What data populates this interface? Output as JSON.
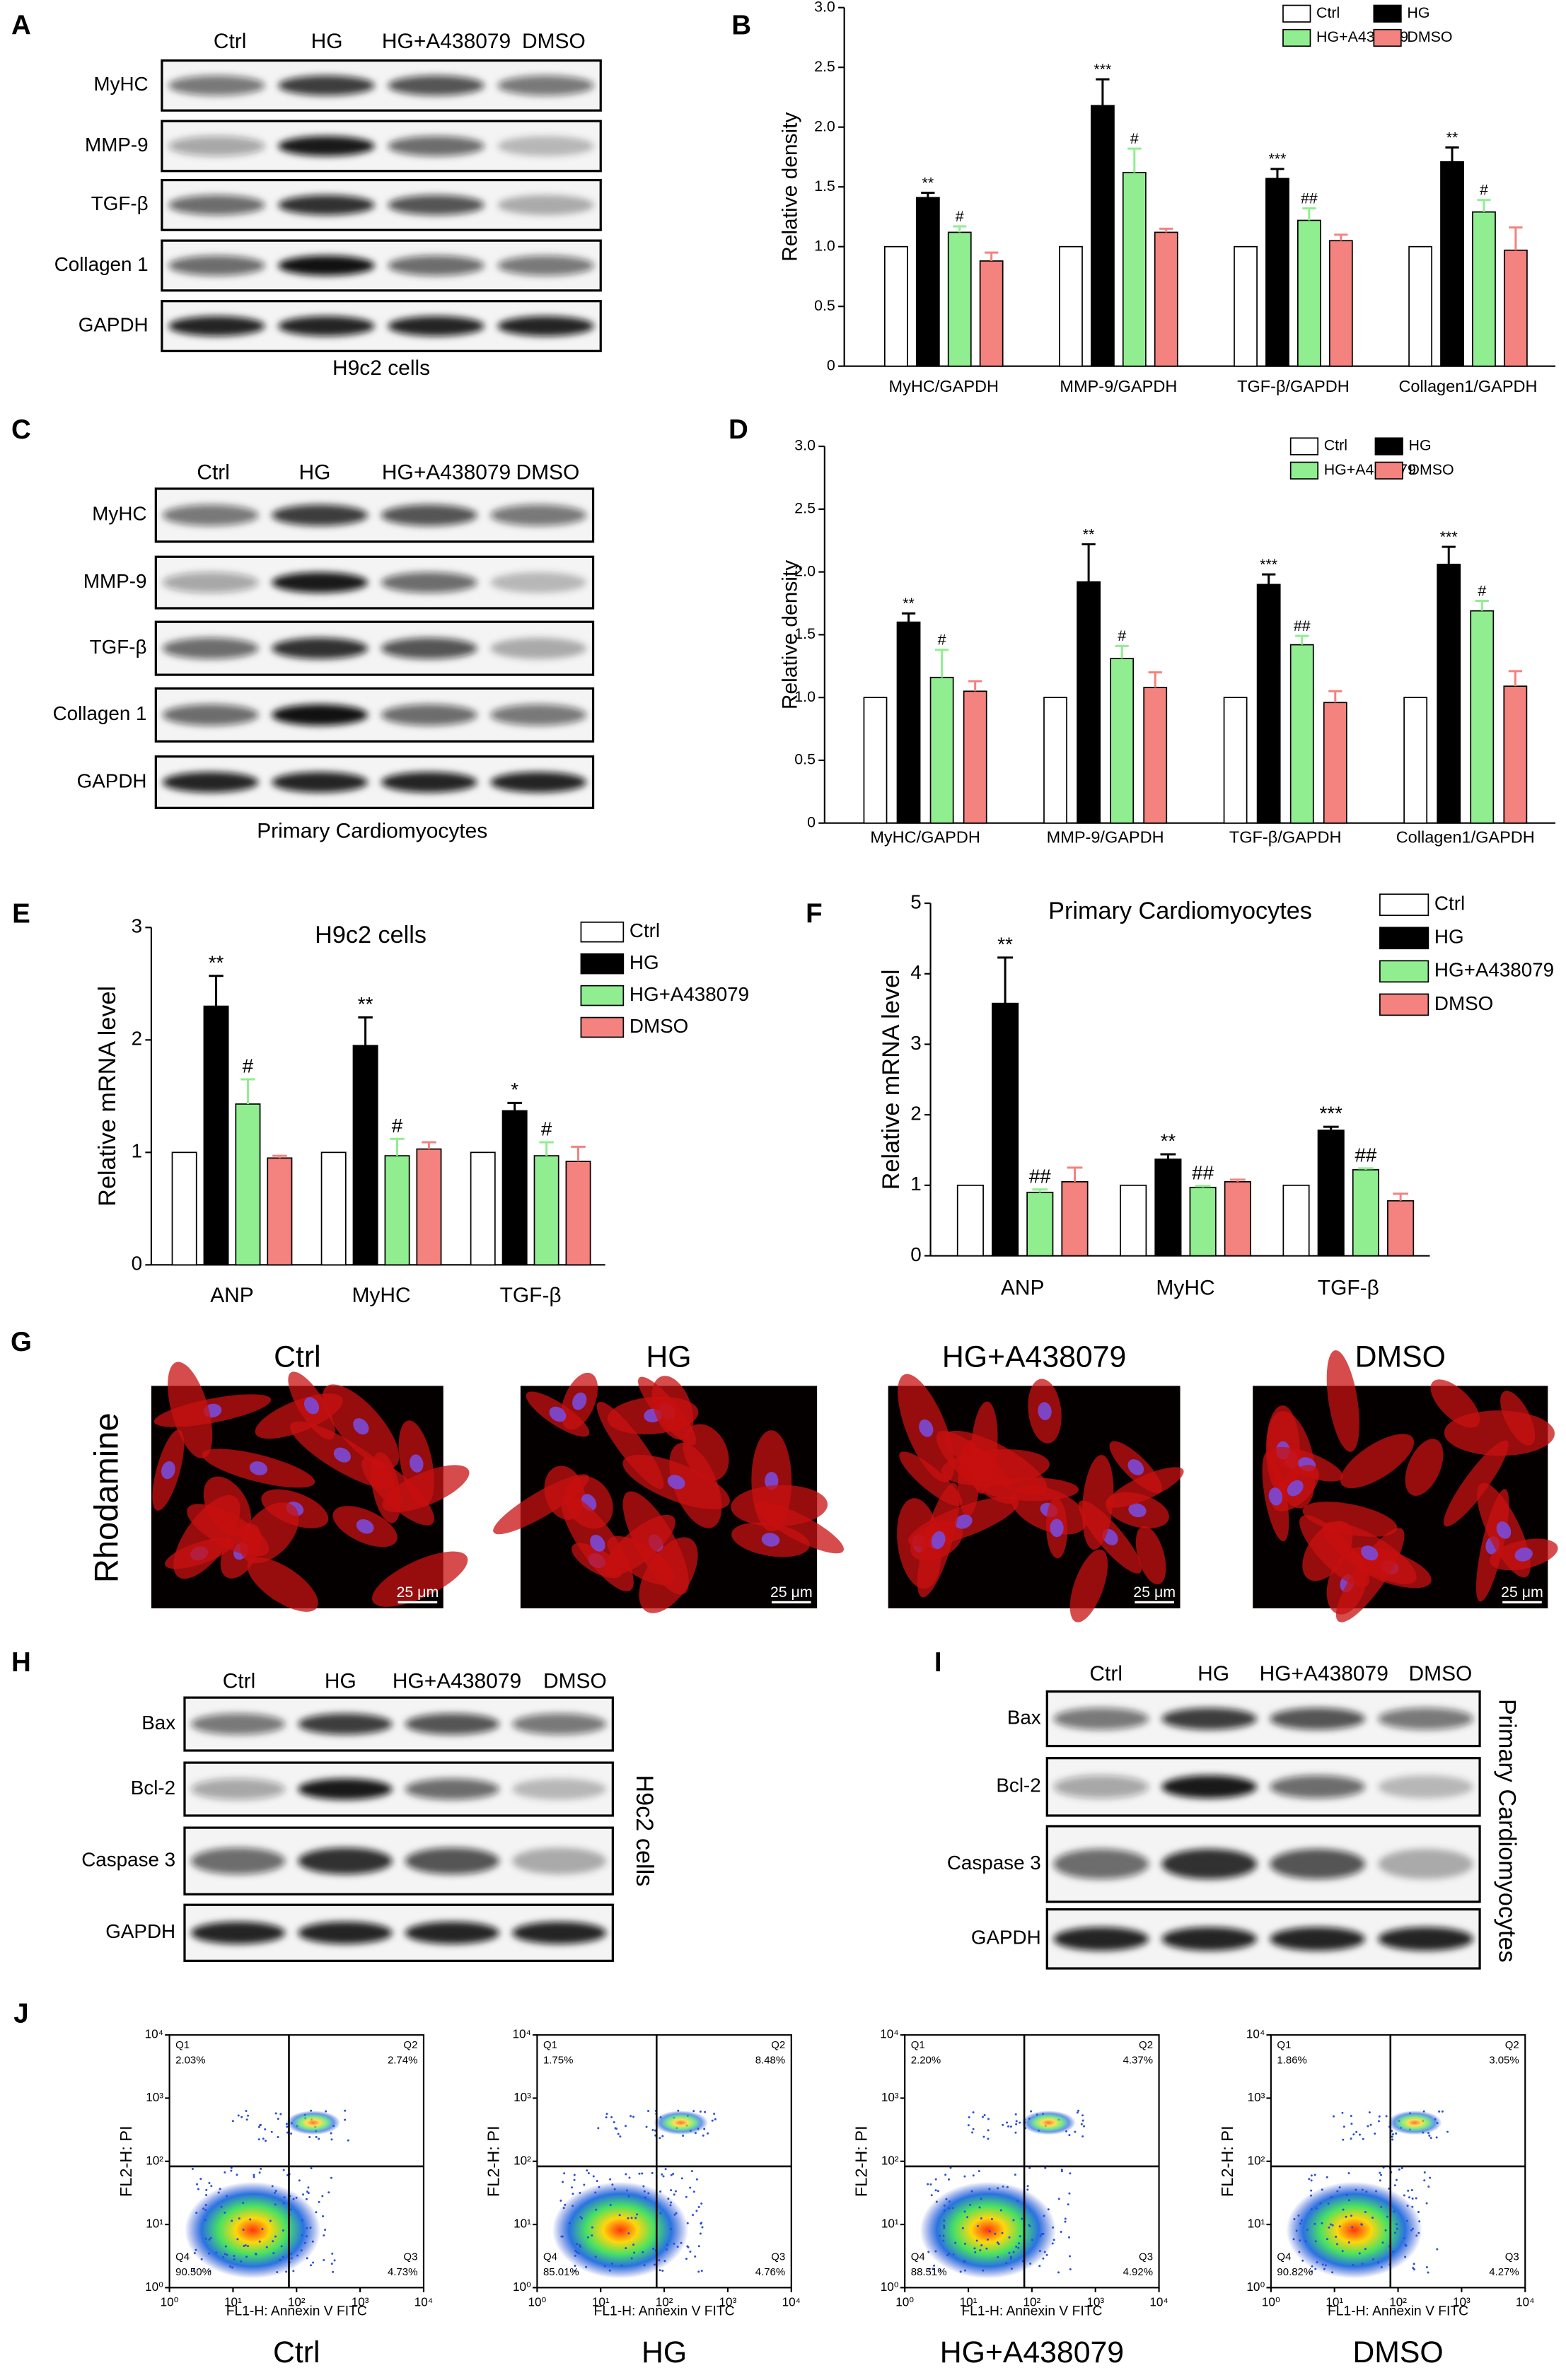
{
  "blots": [
    {
      "panel": "A",
      "lanes": [
        "Ctrl",
        "HG",
        "HG+A438079",
        "DMSO"
      ],
      "rows": [
        "MyHC",
        "MMP-9",
        "TGF-β",
        "Collagen 1",
        "GAPDH"
      ],
      "caption": "H9c2 cells"
    },
    {
      "panel": "C",
      "lanes": [
        "Ctrl",
        "HG",
        "HG+A438079",
        "DMSO"
      ],
      "rows": [
        "MyHC",
        "MMP-9",
        "TGF-β",
        "Collagen 1",
        "GAPDH"
      ],
      "caption": "Primary Cardiomyocytes"
    },
    {
      "panel": "H",
      "lanes": [
        "Ctrl",
        "HG",
        "HG+A438079",
        "DMSO"
      ],
      "rows": [
        "Bax",
        "Bcl-2",
        "Caspase 3",
        "GAPDH"
      ],
      "caption": "H9c2 cells"
    },
    {
      "panel": "I",
      "lanes": [
        "Ctrl",
        "HG",
        "HG+A438079",
        "DMSO"
      ],
      "rows": [
        "Bax",
        "Bcl-2",
        "Caspase 3",
        "GAPDH"
      ],
      "caption": "Primary Cardiomyocytes"
    }
  ],
  "chart_data": [
    {
      "type": "bar",
      "panel": "B",
      "y_label": "Relative density",
      "categories": [
        "MyHC/GAPDH",
        "MMP-9/GAPDH",
        "TGF-β/GAPDH",
        "Collagen1/GAPDH"
      ],
      "ylim": [
        0,
        3
      ],
      "yticks": [
        0,
        0.5,
        {
          "value": 1,
          "label": "1.0"
        },
        1.5,
        {
          "value": 2,
          "label": "2.0"
        },
        2.5,
        {
          "value": 3,
          "label": "3.0"
        }
      ],
      "edgecolor": "#000000",
      "series": [
        {
          "name": "Ctrl",
          "color": "#ffffff",
          "values": [
            1,
            1,
            1,
            1
          ]
        },
        {
          "name": "HG",
          "color": "#000000",
          "values": [
            1.41,
            2.18,
            1.57,
            1.71
          ],
          "errors": [
            0.04,
            0.22,
            0.08,
            0.12
          ],
          "significance": [
            "**",
            "***",
            "***",
            "**"
          ]
        },
        {
          "name": "HG+A438079",
          "color": "#90ee90",
          "values": [
            1.12,
            1.62,
            1.22,
            1.29
          ],
          "errors": [
            0.05,
            0.2,
            0.1,
            0.1
          ],
          "significance": [
            "#",
            "#",
            "##",
            "#"
          ]
        },
        {
          "name": "DMSO",
          "color": "#f4827e",
          "values": [
            0.88,
            1.12,
            1.05,
            0.97
          ],
          "errors": [
            0.07,
            0.03,
            0.05,
            0.19
          ]
        }
      ]
    },
    {
      "type": "bar",
      "panel": "D",
      "y_label": "Relative density",
      "categories": [
        "MyHC/GAPDH",
        "MMP-9/GAPDH",
        "TGF-β/GAPDH",
        "Collagen1/GAPDH"
      ],
      "ylim": [
        0,
        3
      ],
      "yticks": [
        0,
        0.5,
        {
          "value": 1,
          "label": "1.0"
        },
        1.5,
        {
          "value": 2,
          "label": "2.0"
        },
        2.5,
        {
          "value": 3,
          "label": "3.0"
        }
      ],
      "edgecolor": "#000000",
      "series": [
        {
          "name": "Ctrl",
          "color": "#ffffff",
          "values": [
            1,
            1,
            1,
            1
          ]
        },
        {
          "name": "HG",
          "color": "#000000",
          "values": [
            1.6,
            1.92,
            1.9,
            2.06
          ],
          "errors": [
            0.07,
            0.3,
            0.08,
            0.14
          ],
          "significance": [
            "**",
            "**",
            "***",
            "***"
          ]
        },
        {
          "name": "HG+A438079",
          "color": "#90ee90",
          "values": [
            1.16,
            1.31,
            1.42,
            1.69
          ],
          "errors": [
            0.22,
            0.1,
            0.07,
            0.08
          ],
          "significance": [
            "#",
            "#",
            "##",
            "#"
          ]
        },
        {
          "name": "DMSO",
          "color": "#f4827e",
          "values": [
            1.05,
            1.08,
            0.96,
            1.09
          ],
          "errors": [
            0.08,
            0.12,
            0.09,
            0.12
          ]
        }
      ]
    },
    {
      "type": "bar",
      "panel": "E",
      "title": "H9c2 cells",
      "y_label": "Relative mRNA level",
      "categories": [
        "ANP",
        "MyHC",
        "TGF-β"
      ],
      "ylim": [
        0,
        3
      ],
      "yticks": [
        0,
        1,
        2,
        3
      ],
      "edgecolor": "#000000",
      "series": [
        {
          "name": "Ctrl",
          "color": "#ffffff",
          "values": [
            1,
            1,
            1
          ]
        },
        {
          "name": "HG",
          "color": "#000000",
          "values": [
            2.3,
            1.95,
            1.37
          ],
          "errors": [
            0.27,
            0.25,
            0.07
          ],
          "significance": [
            "**",
            "**",
            "*"
          ]
        },
        {
          "name": "HG+A438079",
          "color": "#90ee90",
          "values": [
            1.43,
            0.97,
            0.97
          ],
          "errors": [
            0.22,
            0.15,
            0.12
          ],
          "significance": [
            "#",
            "#",
            "#"
          ]
        },
        {
          "name": "DMSO",
          "color": "#f4827e",
          "values": [
            0.95,
            1.03,
            0.92
          ],
          "errors": [
            0.02,
            0.06,
            0.13
          ]
        }
      ]
    },
    {
      "type": "bar",
      "panel": "F",
      "title": "Primary Cardiomyocytes",
      "y_label": "Relative mRNA level",
      "categories": [
        "ANP",
        "MyHC",
        "TGF-β"
      ],
      "ylim": [
        0,
        5
      ],
      "yticks": [
        0,
        1,
        2,
        3,
        4,
        5
      ],
      "edgecolor": "#000000",
      "series": [
        {
          "name": "Ctrl",
          "color": "#ffffff",
          "values": [
            1,
            1,
            1
          ]
        },
        {
          "name": "HG",
          "color": "#000000",
          "values": [
            3.58,
            1.37,
            1.78
          ],
          "errors": [
            0.65,
            0.07,
            0.05
          ],
          "significance": [
            "**",
            "**",
            "***"
          ]
        },
        {
          "name": "HG+A438079",
          "color": "#90ee90",
          "values": [
            0.9,
            0.97,
            1.22
          ],
          "errors": [
            0.04,
            0.02,
            0.02
          ],
          "significance": [
            "##",
            "##",
            "##"
          ]
        },
        {
          "name": "DMSO",
          "color": "#f4827e",
          "values": [
            1.05,
            1.05,
            0.78
          ],
          "errors": [
            0.2,
            0.03,
            0.1
          ]
        }
      ]
    }
  ],
  "images": {
    "panel": "G",
    "stain": "Rhodamine",
    "conditions": [
      "Ctrl",
      "HG",
      "HG+A438079",
      "DMSO"
    ],
    "scale_bar": "25 μm"
  },
  "flow": {
    "panel": "J",
    "xlabel": "FL1-H: Annexin V FITC",
    "ylabel": "FL2-H: PI",
    "xscale": "log",
    "yscale": "log",
    "xlim": [
      1,
      10000
    ],
    "ylim": [
      1,
      10000
    ],
    "xticks": [
      {
        "value": 1,
        "label": "10⁰"
      },
      {
        "value": 10,
        "label": "10¹"
      },
      {
        "value": 100,
        "label": "10²"
      },
      {
        "value": 1000,
        "label": "10³"
      },
      {
        "value": 10000,
        "label": "10⁴"
      }
    ],
    "yticks": [
      {
        "value": 1,
        "label": "10⁰"
      },
      {
        "value": 10,
        "label": "10¹"
      },
      {
        "value": 100,
        "label": "10²"
      },
      {
        "value": 1000,
        "label": "10³"
      },
      {
        "value": 10000,
        "label": "10⁴"
      }
    ],
    "plots": [
      {
        "title": "Ctrl",
        "quadrants": [
          {
            "name": "Q1",
            "label": "2.03%"
          },
          {
            "name": "Q2",
            "label": "2.74%"
          },
          {
            "name": "Q3",
            "label": "4.73%"
          },
          {
            "name": "Q4",
            "label": "90.50%"
          }
        ]
      },
      {
        "title": "HG",
        "quadrants": [
          {
            "name": "Q1",
            "label": "1.75%"
          },
          {
            "name": "Q2",
            "label": "8.48%"
          },
          {
            "name": "Q3",
            "label": "4.76%"
          },
          {
            "name": "Q4",
            "label": "85.01%"
          }
        ]
      },
      {
        "title": "HG+A438079",
        "quadrants": [
          {
            "name": "Q1",
            "label": "2.20%"
          },
          {
            "name": "Q2",
            "label": "4.37%"
          },
          {
            "name": "Q3",
            "label": "4.92%"
          },
          {
            "name": "Q4",
            "label": "88.51%"
          }
        ]
      },
      {
        "title": "DMSO",
        "quadrants": [
          {
            "name": "Q1",
            "label": "1.86%"
          },
          {
            "name": "Q2",
            "label": "3.05%"
          },
          {
            "name": "Q3",
            "label": "4.27%"
          },
          {
            "name": "Q4",
            "label": "90.82%"
          }
        ]
      }
    ]
  }
}
